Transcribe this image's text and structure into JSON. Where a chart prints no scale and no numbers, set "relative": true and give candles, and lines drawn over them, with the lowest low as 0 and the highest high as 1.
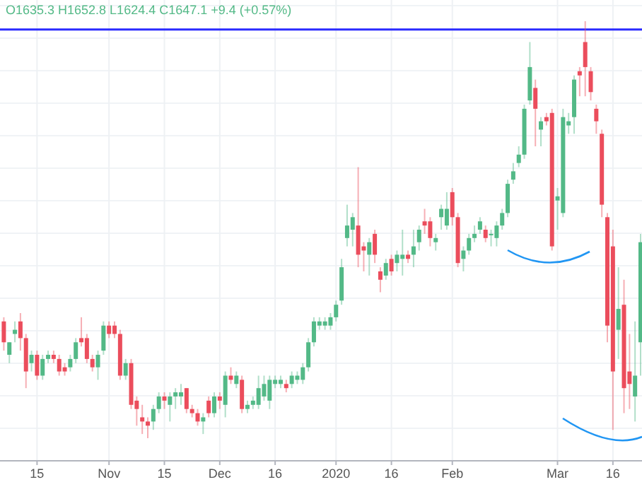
{
  "chart_data": {
    "type": "candlestick",
    "relative": true,
    "grid": true,
    "annotations": [
      "O1635.3 H1652.8 L1624.4 C1647.1 +9.4 (+0.57%)"
    ],
    "ref_lines": [
      {
        "axis": "y",
        "value": 0.98,
        "color": "#2a2aff"
      }
    ],
    "categories": [
      null,
      null,
      null,
      null,
      null,
      null,
      "15",
      null,
      null,
      null,
      null,
      null,
      null,
      null,
      null,
      null,
      null,
      null,
      null,
      "Nov",
      null,
      null,
      null,
      null,
      null,
      null,
      null,
      null,
      null,
      "15",
      null,
      null,
      null,
      null,
      null,
      null,
      null,
      null,
      null,
      "Dec",
      null,
      null,
      null,
      null,
      null,
      null,
      null,
      null,
      null,
      "16",
      null,
      null,
      null,
      null,
      null,
      null,
      null,
      null,
      null,
      null,
      "2020",
      null,
      null,
      null,
      null,
      null,
      null,
      null,
      null,
      null,
      "16",
      null,
      null,
      null,
      null,
      null,
      null,
      null,
      null,
      null,
      null,
      "Feb",
      null,
      null,
      null,
      null,
      null,
      null,
      null,
      null,
      null,
      null,
      null,
      null,
      null,
      null,
      null,
      null,
      null,
      null,
      "Mar",
      null,
      null,
      null,
      null,
      null,
      null,
      null,
      null,
      null,
      "16",
      null,
      null,
      null,
      null,
      null
    ],
    "ohlc": [
      [
        0.28,
        0.29,
        0.21,
        0.23
      ],
      [
        0.2,
        0.23,
        0.18,
        0.23
      ],
      [
        0.25,
        0.28,
        0.23,
        0.26
      ],
      [
        0.28,
        0.3,
        0.21,
        0.24
      ],
      [
        0.24,
        0.25,
        0.12,
        0.16
      ],
      [
        0.18,
        0.21,
        0.16,
        0.2
      ],
      [
        0.2,
        0.21,
        0.14,
        0.15
      ],
      [
        0.15,
        0.2,
        0.14,
        0.19
      ],
      [
        0.19,
        0.21,
        0.18,
        0.2
      ],
      [
        0.2,
        0.21,
        0.18,
        0.19
      ],
      [
        0.19,
        0.2,
        0.15,
        0.16
      ],
      [
        0.17,
        0.18,
        0.15,
        0.16
      ],
      [
        0.17,
        0.2,
        0.16,
        0.19
      ],
      [
        0.19,
        0.24,
        0.18,
        0.23
      ],
      [
        0.24,
        0.29,
        0.22,
        0.23
      ],
      [
        0.24,
        0.25,
        0.18,
        0.19
      ],
      [
        0.19,
        0.2,
        0.16,
        0.17
      ],
      [
        0.17,
        0.21,
        0.14,
        0.2
      ],
      [
        0.21,
        0.28,
        0.2,
        0.27
      ],
      [
        0.27,
        0.28,
        0.24,
        0.25
      ],
      [
        0.27,
        0.28,
        0.24,
        0.25
      ],
      [
        0.25,
        0.26,
        0.14,
        0.15
      ],
      [
        0.15,
        0.19,
        0.14,
        0.18
      ],
      [
        0.18,
        0.19,
        0.07,
        0.08
      ],
      [
        0.09,
        0.1,
        0.03,
        0.07
      ],
      [
        0.05,
        0.08,
        0.01,
        0.04
      ],
      [
        0.04,
        0.05,
        0,
        0.03
      ],
      [
        0.04,
        0.08,
        0.02,
        0.07
      ],
      [
        0.07,
        0.11,
        0.06,
        0.1
      ],
      [
        0.1,
        0.11,
        0.07,
        0.09
      ],
      [
        0.08,
        0.11,
        0.04,
        0.1
      ],
      [
        0.1,
        0.12,
        0.07,
        0.11
      ],
      [
        0.1,
        0.13,
        0.08,
        0.11
      ],
      [
        0.12,
        0.12,
        0.06,
        0.07
      ],
      [
        0.07,
        0.08,
        0.05,
        0.06
      ],
      [
        0.06,
        0.07,
        0.03,
        0.04
      ],
      [
        0.04,
        0.06,
        0.01,
        0.05
      ],
      [
        0.09,
        0.1,
        0.05,
        0.06
      ],
      [
        0.06,
        0.11,
        0.05,
        0.1
      ],
      [
        0.1,
        0.11,
        0.07,
        0.09
      ],
      [
        0.08,
        0.16,
        0.05,
        0.15
      ],
      [
        0.15,
        0.17,
        0.13,
        0.14
      ],
      [
        0.13,
        0.16,
        0.12,
        0.15
      ],
      [
        0.14,
        0.15,
        0.06,
        0.07
      ],
      [
        0.07,
        0.09,
        0.06,
        0.08
      ],
      [
        0.08,
        0.1,
        0.07,
        0.09
      ],
      [
        0.08,
        0.15,
        0.07,
        0.12
      ],
      [
        0.1,
        0.15,
        0.09,
        0.13
      ],
      [
        0.09,
        0.15,
        0.07,
        0.14
      ],
      [
        0.13,
        0.15,
        0.12,
        0.14
      ],
      [
        0.13,
        0.15,
        0.12,
        0.14
      ],
      [
        0.13,
        0.14,
        0.11,
        0.12
      ],
      [
        0.13,
        0.16,
        0.12,
        0.15
      ],
      [
        0.14,
        0.16,
        0.13,
        0.15
      ],
      [
        0.14,
        0.18,
        0.13,
        0.17
      ],
      [
        0.17,
        0.24,
        0.16,
        0.23
      ],
      [
        0.23,
        0.29,
        0.22,
        0.28
      ],
      [
        0.27,
        0.29,
        0.26,
        0.28
      ],
      [
        0.27,
        0.29,
        0.26,
        0.28
      ],
      [
        0.27,
        0.3,
        0.26,
        0.29
      ],
      [
        0.29,
        0.33,
        0.28,
        0.32
      ],
      [
        0.33,
        0.43,
        0.32,
        0.41
      ],
      [
        0.48,
        0.56,
        0.46,
        0.51
      ],
      [
        0.5,
        0.54,
        0.46,
        0.53
      ],
      [
        0.51,
        0.65,
        0.41,
        0.44
      ],
      [
        0.46,
        0.47,
        0.4,
        0.45
      ],
      [
        0.44,
        0.48,
        0.39,
        0.47
      ],
      [
        0.49,
        0.5,
        0.42,
        0.44
      ],
      [
        0.4,
        0.41,
        0.35,
        0.38
      ],
      [
        0.39,
        0.43,
        0.38,
        0.42
      ],
      [
        0.43,
        0.44,
        0.39,
        0.4
      ],
      [
        0.42,
        0.45,
        0.4,
        0.44
      ],
      [
        0.43,
        0.5,
        0.39,
        0.44
      ],
      [
        0.44,
        0.45,
        0.42,
        0.43
      ],
      [
        0.44,
        0.5,
        0.41,
        0.46
      ],
      [
        0.47,
        0.51,
        0.45,
        0.5
      ],
      [
        0.52,
        0.55,
        0.49,
        0.51
      ],
      [
        0.52,
        0.53,
        0.46,
        0.48
      ],
      [
        0.47,
        0.49,
        0.45,
        0.48
      ],
      [
        0.53,
        0.56,
        0.5,
        0.55
      ],
      [
        0.51,
        0.59,
        0.5,
        0.55
      ],
      [
        0.59,
        0.6,
        0.51,
        0.53
      ],
      [
        0.53,
        0.54,
        0.41,
        0.42
      ],
      [
        0.43,
        0.46,
        0.4,
        0.45
      ],
      [
        0.45,
        0.49,
        0.44,
        0.48
      ],
      [
        0.48,
        0.51,
        0.47,
        0.49
      ],
      [
        0.5,
        0.53,
        0.49,
        0.52
      ],
      [
        0.5,
        0.51,
        0.47,
        0.48
      ],
      [
        0.49,
        0.5,
        0.46,
        0.49
      ],
      [
        0.48,
        0.52,
        0.46,
        0.51
      ],
      [
        0.51,
        0.55,
        0.5,
        0.54
      ],
      [
        0.54,
        0.62,
        0.53,
        0.61
      ],
      [
        0.62,
        0.66,
        0.61,
        0.64
      ],
      [
        0.66,
        0.7,
        0.65,
        0.68
      ],
      [
        0.68,
        0.8,
        0.67,
        0.79
      ],
      [
        0.81,
        0.95,
        0.8,
        0.89
      ],
      [
        0.84,
        0.86,
        0.7,
        0.79
      ],
      [
        0.74,
        0.77,
        0.7,
        0.76
      ],
      [
        0.77,
        0.78,
        0.75,
        0.76
      ],
      [
        0.78,
        0.79,
        0.45,
        0.46
      ],
      [
        0.57,
        0.6,
        0.5,
        0.58
      ],
      [
        0.54,
        0.79,
        0.53,
        0.77
      ],
      [
        0.75,
        0.78,
        0.73,
        0.76
      ],
      [
        0.77,
        0.87,
        0.73,
        0.86
      ],
      [
        0.88,
        0.89,
        0.82,
        0.87
      ],
      [
        0.95,
        1,
        0.82,
        0.89
      ],
      [
        0.88,
        0.89,
        0.81,
        0.83
      ],
      [
        0.79,
        0.8,
        0.73,
        0.76
      ],
      [
        0.73,
        0.74,
        0.53,
        0.56
      ],
      [
        0.53,
        0.54,
        0.23,
        0.27
      ],
      [
        0.46,
        0.5,
        0.02,
        0.16
      ],
      [
        0.26,
        0.41,
        0.19,
        0.31
      ],
      [
        0.32,
        0.38,
        0.06,
        0.12
      ],
      [
        0.16,
        0.25,
        0.07,
        0.13
      ],
      [
        0.1,
        0.28,
        0.04,
        0.15
      ],
      [
        0.23,
        0.49,
        0.15,
        0.47
      ]
    ]
  }
}
